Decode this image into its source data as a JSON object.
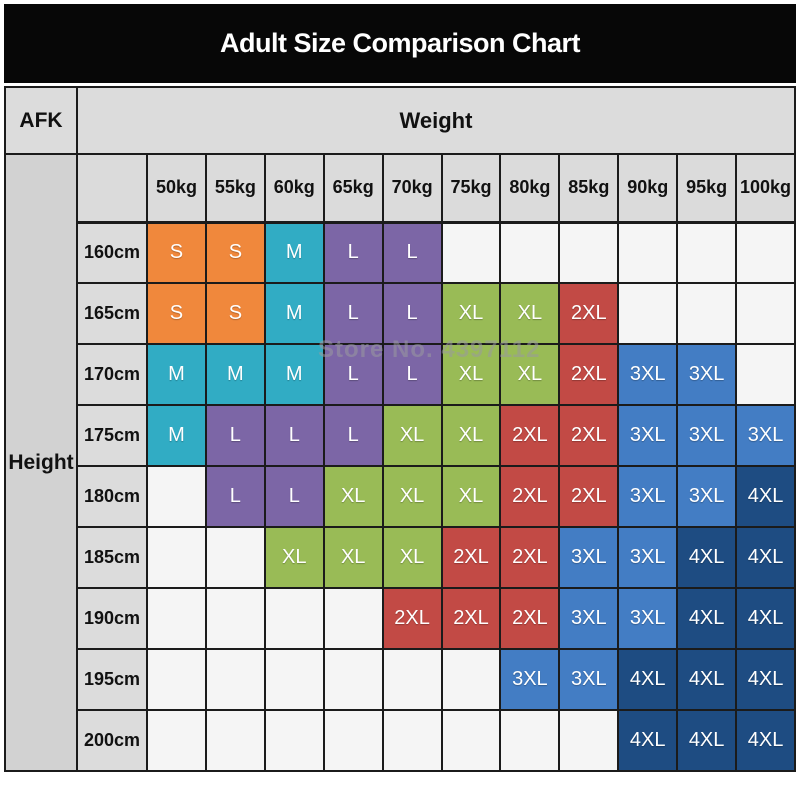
{
  "page": {
    "title": "Adult Size Comparison Chart",
    "watermark": "Store No. 4397112"
  },
  "table": {
    "corner_label": "AFK",
    "column_group_label": "Weight",
    "row_group_label": "Height"
  },
  "size_colors": {
    "S": "#F0883C",
    "M": "#31ACC4",
    "L": "#7C66A6",
    "XL": "#99BB56",
    "2XL": "#C24A45",
    "3XL": "#437DC4",
    "4XL": "#1E4C82"
  },
  "chart_data": {
    "type": "table",
    "title": "Adult Size Comparison Chart",
    "x_label": "Weight",
    "y_label": "Height",
    "x_categories": [
      "50kg",
      "55kg",
      "60kg",
      "65kg",
      "70kg",
      "75kg",
      "80kg",
      "85kg",
      "90kg",
      "95kg",
      "100kg"
    ],
    "y_categories": [
      "160cm",
      "165cm",
      "170cm",
      "175cm",
      "180cm",
      "185cm",
      "190cm",
      "195cm",
      "200cm"
    ],
    "values": [
      [
        "S",
        "S",
        "M",
        "L",
        "L",
        "",
        "",
        "",
        "",
        "",
        ""
      ],
      [
        "S",
        "S",
        "M",
        "L",
        "L",
        "XL",
        "XL",
        "2XL",
        "",
        "",
        ""
      ],
      [
        "M",
        "M",
        "M",
        "L",
        "L",
        "XL",
        "XL",
        "2XL",
        "3XL",
        "3XL",
        ""
      ],
      [
        "M",
        "L",
        "L",
        "L",
        "XL",
        "XL",
        "2XL",
        "2XL",
        "3XL",
        "3XL",
        "3XL"
      ],
      [
        "",
        "L",
        "L",
        "XL",
        "XL",
        "XL",
        "2XL",
        "2XL",
        "3XL",
        "3XL",
        "4XL"
      ],
      [
        "",
        "",
        "XL",
        "XL",
        "XL",
        "2XL",
        "2XL",
        "3XL",
        "3XL",
        "4XL",
        "4XL"
      ],
      [
        "",
        "",
        "",
        "",
        "2XL",
        "2XL",
        "2XL",
        "3XL",
        "3XL",
        "4XL",
        "4XL"
      ],
      [
        "",
        "",
        "",
        "",
        "",
        "",
        "3XL",
        "3XL",
        "4XL",
        "4XL",
        "4XL"
      ],
      [
        "",
        "",
        "",
        "",
        "",
        "",
        "",
        "",
        "4XL",
        "4XL",
        "4XL"
      ]
    ],
    "legend_sizes": [
      "S",
      "M",
      "L",
      "XL",
      "2XL",
      "3XL",
      "4XL"
    ]
  }
}
